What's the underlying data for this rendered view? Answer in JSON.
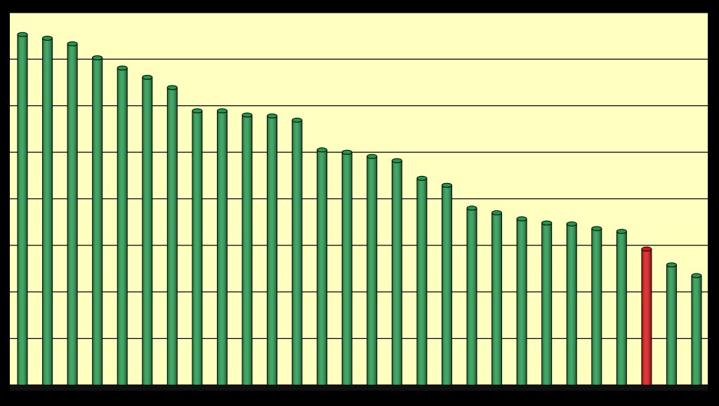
{
  "chart_data": {
    "type": "bar",
    "categories": [
      null,
      null,
      null,
      null,
      null,
      null,
      null,
      null,
      null,
      null,
      null,
      null,
      null,
      null,
      null,
      null,
      null,
      null,
      null,
      null,
      null,
      null,
      null,
      null,
      null,
      null,
      null,
      null
    ],
    "values": [
      7.53,
      7.45,
      7.33,
      7.03,
      6.81,
      6.61,
      6.39,
      5.89,
      5.89,
      5.8,
      5.78,
      5.69,
      5.05,
      5.0,
      4.91,
      4.82,
      4.44,
      4.29,
      3.8,
      3.7,
      3.57,
      3.48,
      3.46,
      3.36,
      3.3,
      2.92,
      2.58,
      2.35
    ],
    "colors": [
      "#1f9a4a",
      "#1f9a4a",
      "#1f9a4a",
      "#1f9a4a",
      "#1f9a4a",
      "#1f9a4a",
      "#1f9a4a",
      "#1f9a4a",
      "#1f9a4a",
      "#1f9a4a",
      "#1f9a4a",
      "#1f9a4a",
      "#1f9a4a",
      "#1f9a4a",
      "#1f9a4a",
      "#1f9a4a",
      "#1f9a4a",
      "#1f9a4a",
      "#1f9a4a",
      "#1f9a4a",
      "#1f9a4a",
      "#1f9a4a",
      "#1f9a4a",
      "#1f9a4a",
      "#1f9a4a",
      "#e01010",
      "#1f9a4a",
      "#1f9a4a"
    ],
    "ylim": [
      0,
      8
    ],
    "yticks": [
      0,
      1,
      2,
      3,
      4,
      5,
      6,
      7,
      8
    ],
    "grid": true
  }
}
